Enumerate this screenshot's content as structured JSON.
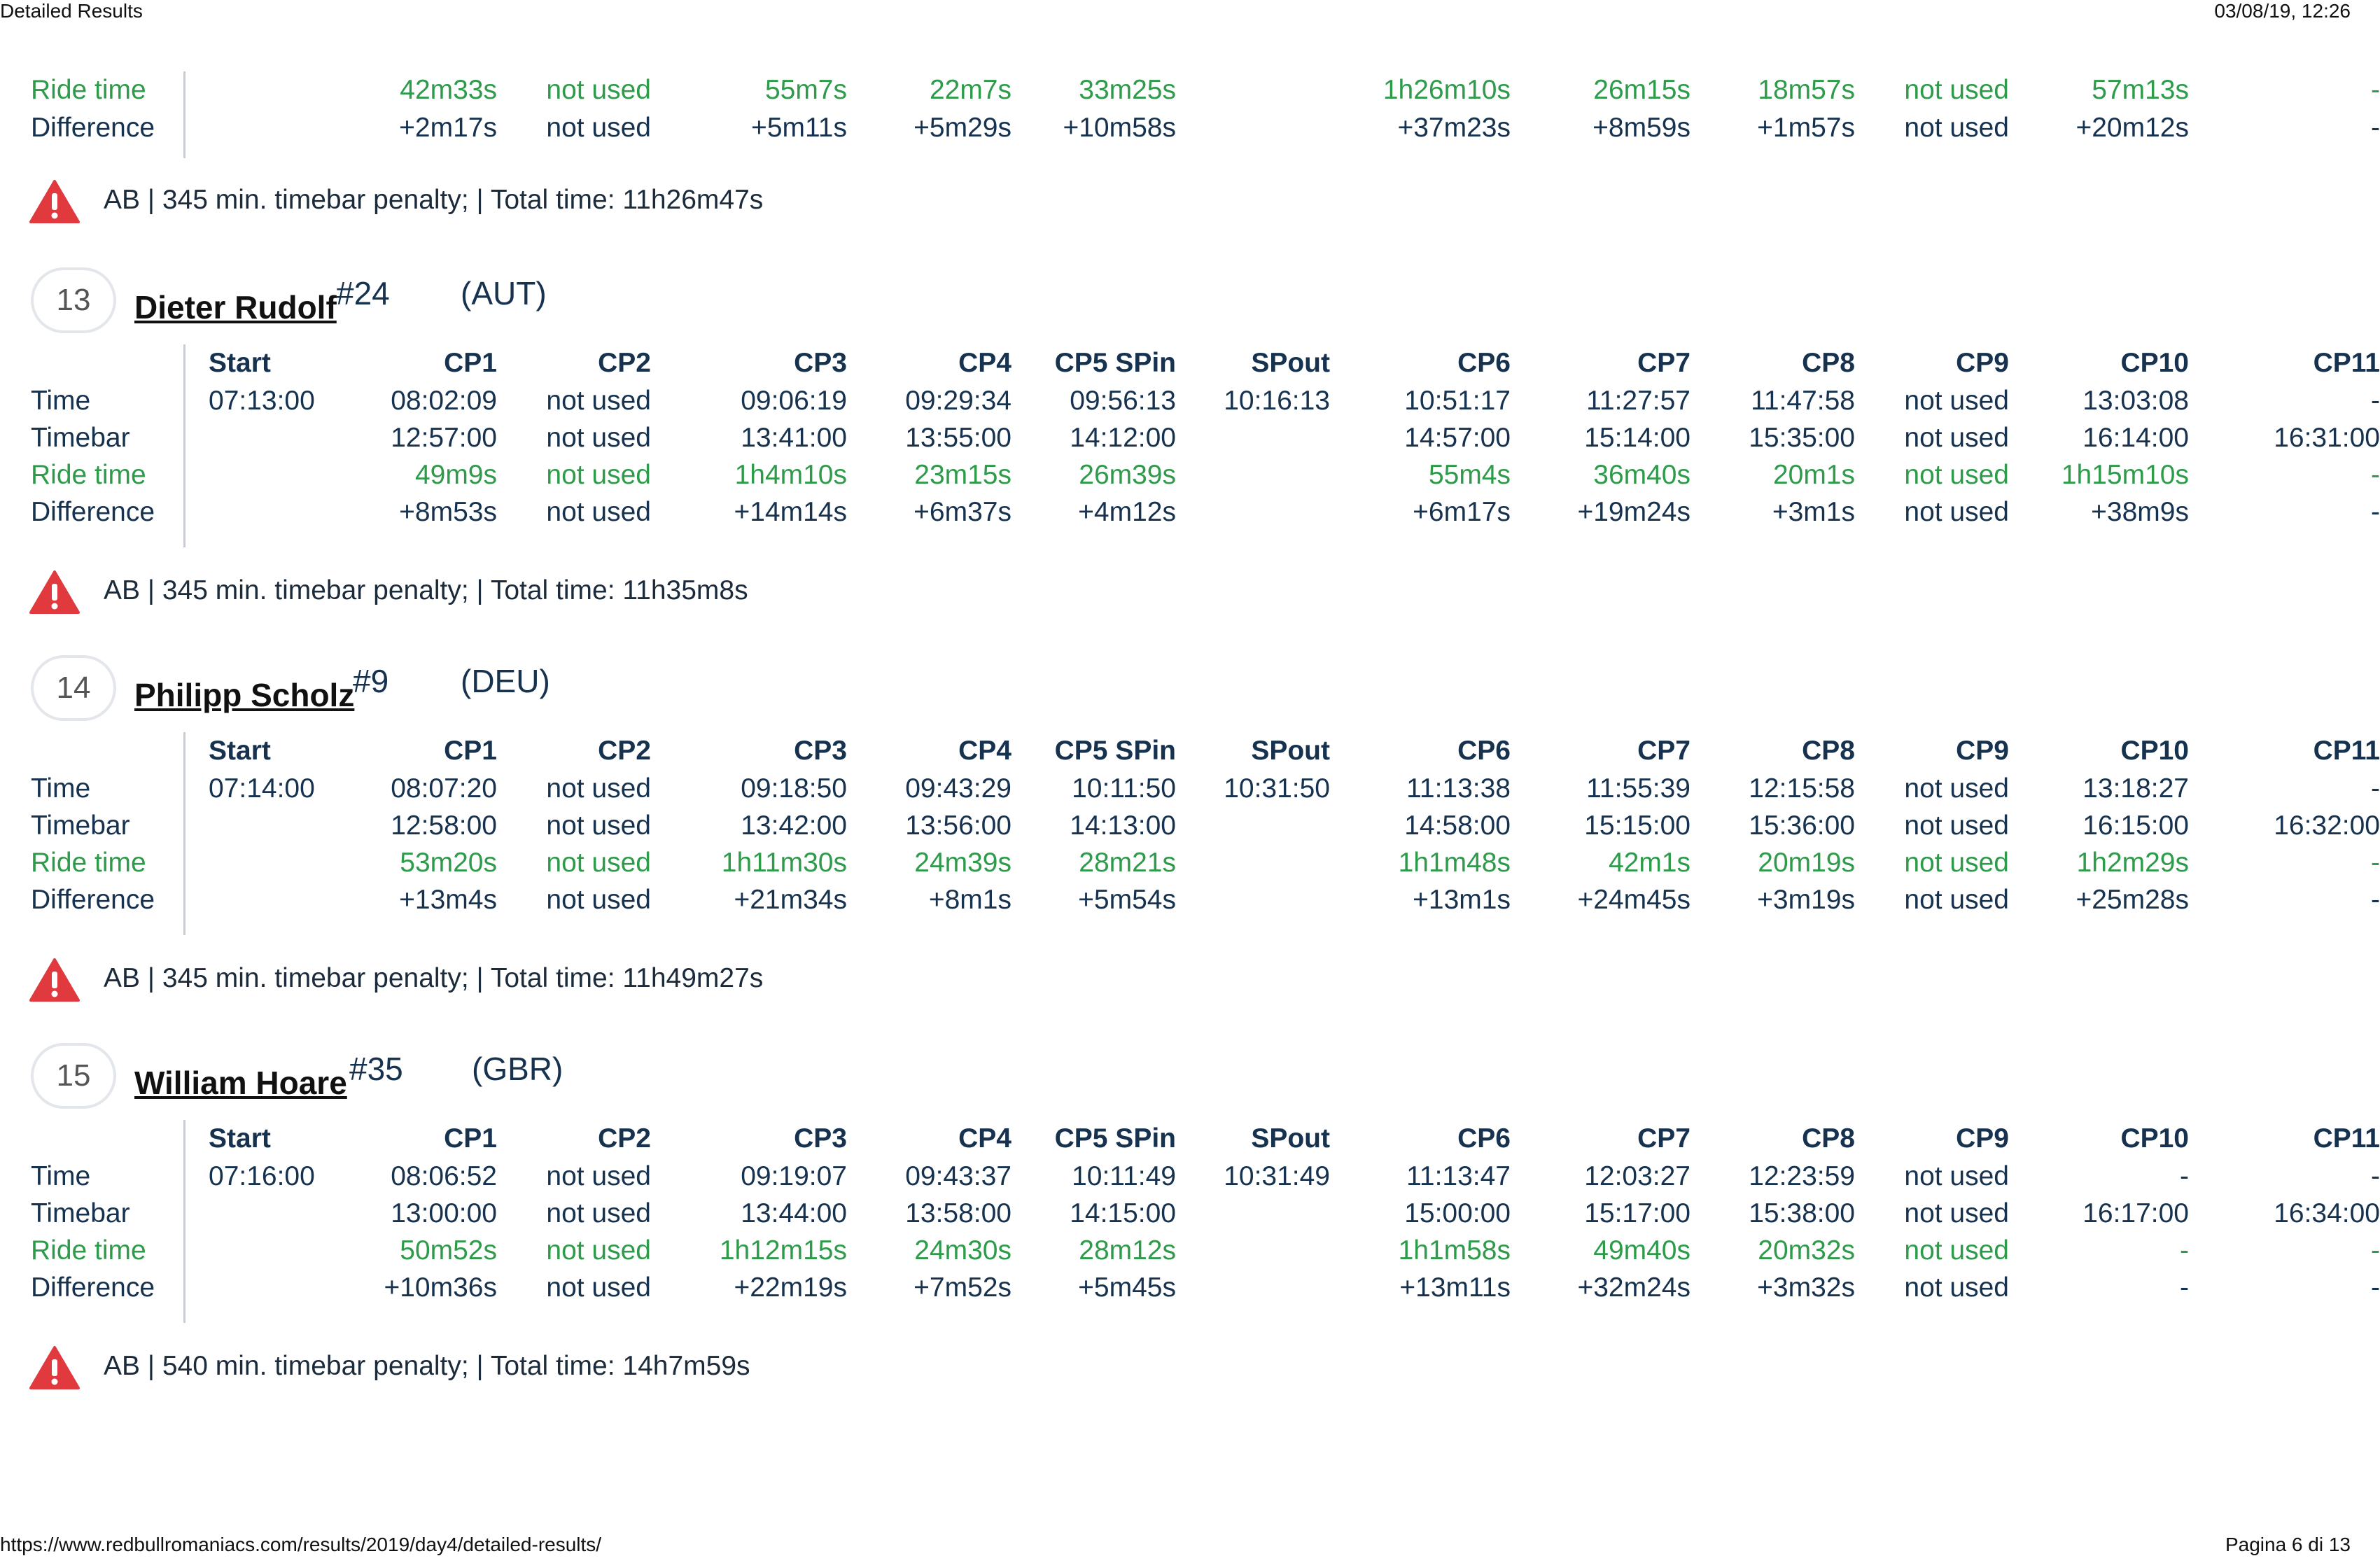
{
  "header": {
    "title": "Detailed Results",
    "datetime": "03/08/19, 12:26"
  },
  "footer": {
    "url": "https://www.redbullromaniacs.com/results/2019/day4/detailed-results/",
    "page": "Pagina 6 di 13"
  },
  "columns": [
    "Start",
    "CP1",
    "CP2",
    "CP3",
    "CP4",
    "CP5 SPin",
    "SPout",
    "CP6",
    "CP7",
    "CP8",
    "CP9",
    "CP10",
    "CP11"
  ],
  "labels": {
    "time": "Time",
    "timebar": "Timebar",
    "ride": "Ride time",
    "diff": "Difference"
  },
  "prev": {
    "ride": [
      "",
      "42m33s",
      "not used",
      "55m7s",
      "22m7s",
      "33m25s",
      "",
      "1h26m10s",
      "26m15s",
      "18m57s",
      "not used",
      "57m13s",
      "-"
    ],
    "diff": [
      "",
      "+2m17s",
      "not used",
      "+5m11s",
      "+5m29s",
      "+10m58s",
      "",
      "+37m23s",
      "+8m59s",
      "+1m57s",
      "not used",
      "+20m12s",
      "-"
    ],
    "penalty": "AB | 345 min. timebar penalty; | Total time: 11h26m47s"
  },
  "riders": [
    {
      "rank": "13",
      "name": "Dieter Rudolf",
      "number": "#24",
      "country": "(AUT)",
      "time": [
        "07:13:00",
        "08:02:09",
        "not used",
        "09:06:19",
        "09:29:34",
        "09:56:13",
        "10:16:13",
        "10:51:17",
        "11:27:57",
        "11:47:58",
        "not used",
        "13:03:08",
        "-"
      ],
      "timebar": [
        "",
        "12:57:00",
        "not used",
        "13:41:00",
        "13:55:00",
        "14:12:00",
        "",
        "14:57:00",
        "15:14:00",
        "15:35:00",
        "not used",
        "16:14:00",
        "16:31:00"
      ],
      "ride": [
        "",
        "49m9s",
        "not used",
        "1h4m10s",
        "23m15s",
        "26m39s",
        "",
        "55m4s",
        "36m40s",
        "20m1s",
        "not used",
        "1h15m10s",
        "-"
      ],
      "diff": [
        "",
        "+8m53s",
        "not used",
        "+14m14s",
        "+6m37s",
        "+4m12s",
        "",
        "+6m17s",
        "+19m24s",
        "+3m1s",
        "not used",
        "+38m9s",
        "-"
      ],
      "penalty": "AB | 345 min. timebar penalty; | Total time: 11h35m8s"
    },
    {
      "rank": "14",
      "name": "Philipp Scholz",
      "number": "#9",
      "country": "(DEU)",
      "time": [
        "07:14:00",
        "08:07:20",
        "not used",
        "09:18:50",
        "09:43:29",
        "10:11:50",
        "10:31:50",
        "11:13:38",
        "11:55:39",
        "12:15:58",
        "not used",
        "13:18:27",
        "-"
      ],
      "timebar": [
        "",
        "12:58:00",
        "not used",
        "13:42:00",
        "13:56:00",
        "14:13:00",
        "",
        "14:58:00",
        "15:15:00",
        "15:36:00",
        "not used",
        "16:15:00",
        "16:32:00"
      ],
      "ride": [
        "",
        "53m20s",
        "not used",
        "1h11m30s",
        "24m39s",
        "28m21s",
        "",
        "1h1m48s",
        "42m1s",
        "20m19s",
        "not used",
        "1h2m29s",
        "-"
      ],
      "diff": [
        "",
        "+13m4s",
        "not used",
        "+21m34s",
        "+8m1s",
        "+5m54s",
        "",
        "+13m1s",
        "+24m45s",
        "+3m19s",
        "not used",
        "+25m28s",
        "-"
      ],
      "penalty": "AB | 345 min. timebar penalty; | Total time: 11h49m27s"
    },
    {
      "rank": "15",
      "name": "William Hoare",
      "number": "#35",
      "country": "(GBR)",
      "time": [
        "07:16:00",
        "08:06:52",
        "not used",
        "09:19:07",
        "09:43:37",
        "10:11:49",
        "10:31:49",
        "11:13:47",
        "12:03:27",
        "12:23:59",
        "not used",
        "-",
        "-"
      ],
      "timebar": [
        "",
        "13:00:00",
        "not used",
        "13:44:00",
        "13:58:00",
        "14:15:00",
        "",
        "15:00:00",
        "15:17:00",
        "15:38:00",
        "not used",
        "16:17:00",
        "16:34:00"
      ],
      "ride": [
        "",
        "50m52s",
        "not used",
        "1h12m15s",
        "24m30s",
        "28m12s",
        "",
        "1h1m58s",
        "49m40s",
        "20m32s",
        "not used",
        "-",
        "-"
      ],
      "diff": [
        "",
        "+10m36s",
        "not used",
        "+22m19s",
        "+7m52s",
        "+5m45s",
        "",
        "+13m11s",
        "+32m24s",
        "+3m32s",
        "not used",
        "-",
        "-"
      ],
      "penalty": "AB | 540 min. timebar penalty; | Total time: 14h7m59s"
    }
  ]
}
